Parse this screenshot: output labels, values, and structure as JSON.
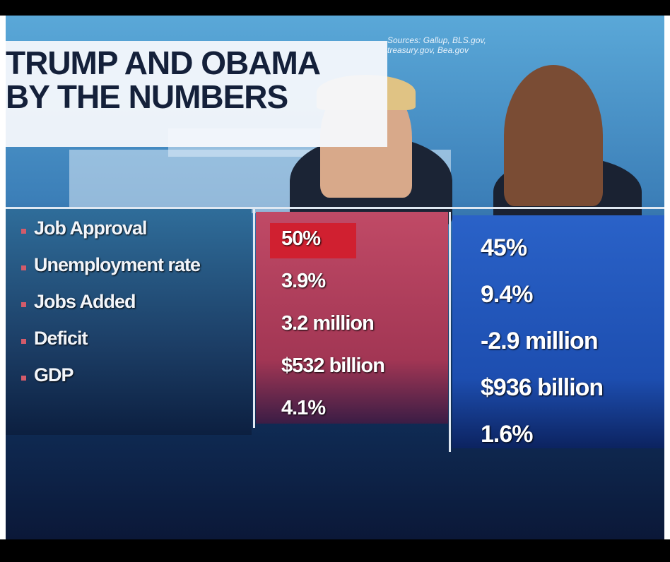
{
  "header": {
    "title_lines": [
      "TRUMP AND OBAMA",
      "BY THE NUMBERS"
    ],
    "sources": [
      "Sources: Gallup, BLS.gov,",
      "treasury.gov, Bea.gov"
    ]
  },
  "table": {
    "rows": [
      [
        "Job Approval",
        "50%",
        "45%"
      ],
      [
        "Unemployment rate",
        "3.9%",
        "9.4%"
      ],
      [
        "Jobs Added",
        "3.2 million",
        "-2.9 million"
      ],
      [
        "Deficit",
        "$532 billion",
        "$936 billion"
      ],
      [
        "GDP",
        "4.1%",
        "1.6%"
      ]
    ]
  }
}
